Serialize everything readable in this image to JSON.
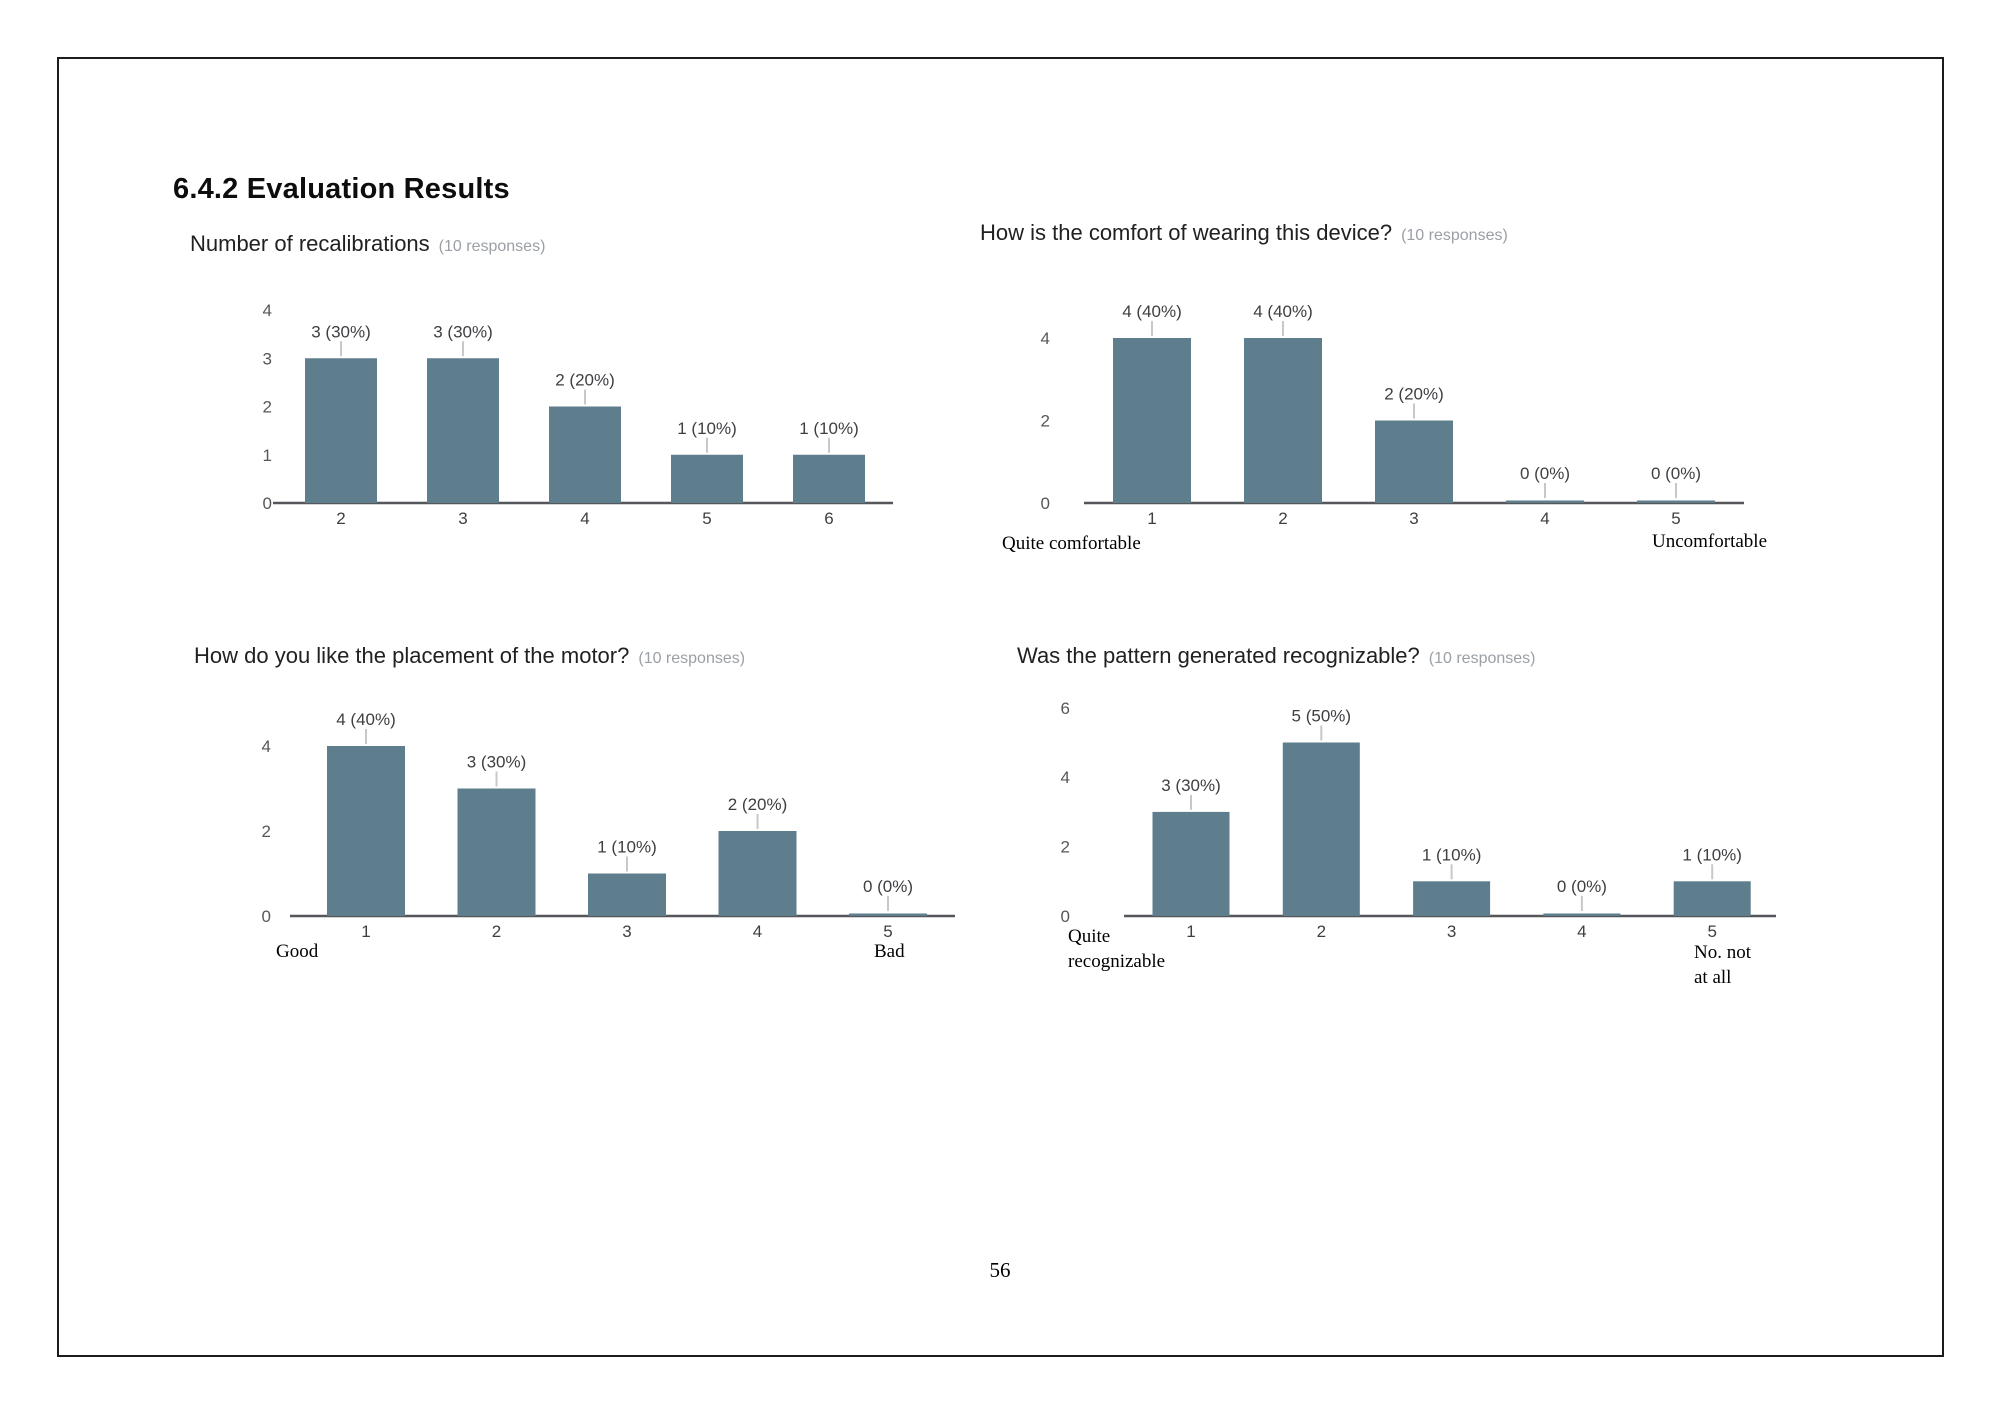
{
  "page": {
    "heading": "6.4.2 Evaluation Results",
    "page_number": "56"
  },
  "colors": {
    "bar": "#5e7d8d",
    "axis": "#55565a",
    "connector": "#c8c8c8",
    "tick_label": "#55575a",
    "value_label": "#3d3f42",
    "title": "#212121",
    "note": "#9aa0a6"
  },
  "chart_data": [
    {
      "type": "bar",
      "title": "Number of recalibrations",
      "note": "(10 responses)",
      "categories": [
        "2",
        "3",
        "4",
        "5",
        "6"
      ],
      "values": [
        3,
        3,
        2,
        1,
        1
      ],
      "value_labels": [
        "3 (30%)",
        "3 (30%)",
        "2 (20%)",
        "1 (10%)",
        "1 (10%)"
      ],
      "yticks": [
        0,
        1,
        2,
        3,
        4
      ],
      "ylim": [
        0,
        4
      ],
      "grid": false,
      "legend": "none",
      "anchor_left": "",
      "anchor_right": ""
    },
    {
      "type": "bar",
      "title": "How is the comfort of wearing this device?",
      "note": "(10 responses)",
      "categories": [
        "1",
        "2",
        "3",
        "4",
        "5"
      ],
      "values": [
        4,
        4,
        2,
        0,
        0
      ],
      "value_labels": [
        "4 (40%)",
        "4 (40%)",
        "2 (20%)",
        "0 (0%)",
        "0 (0%)"
      ],
      "yticks": [
        0,
        2,
        4
      ],
      "ylim": [
        0,
        4
      ],
      "grid": false,
      "legend": "none",
      "anchor_left": "Quite comfortable",
      "anchor_right": "Uncomfortable"
    },
    {
      "type": "bar",
      "title": "How do you like the placement of the motor?",
      "note": "(10 responses)",
      "categories": [
        "1",
        "2",
        "3",
        "4",
        "5"
      ],
      "values": [
        4,
        3,
        1,
        2,
        0
      ],
      "value_labels": [
        "4 (40%)",
        "3 (30%)",
        "1 (10%)",
        "2 (20%)",
        "0 (0%)"
      ],
      "yticks": [
        0,
        2,
        4
      ],
      "ylim": [
        0,
        4
      ],
      "grid": false,
      "legend": "none",
      "anchor_left": "Good",
      "anchor_right": "Bad"
    },
    {
      "type": "bar",
      "title": "Was the pattern generated recognizable?",
      "note": "(10 responses)",
      "categories": [
        "1",
        "2",
        "3",
        "4",
        "5"
      ],
      "values": [
        3,
        5,
        1,
        0,
        1
      ],
      "value_labels": [
        "3 (30%)",
        "5 (50%)",
        "1 (10%)",
        "0 (0%)",
        "1 (10%)"
      ],
      "yticks": [
        0,
        2,
        4,
        6
      ],
      "ylim": [
        0,
        6
      ],
      "grid": false,
      "legend": "none",
      "anchor_left": "Quite\nrecognizable",
      "anchor_right": "No. not\nat all"
    }
  ]
}
